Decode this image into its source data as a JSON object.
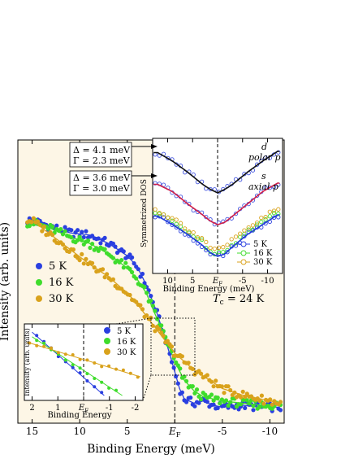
{
  "colors": {
    "panel_bg": "#fdf6e6",
    "s5K": "#2a3fe0",
    "s16K": "#3fdc2c",
    "s30K": "#d9a21c",
    "inset_open": "#4456e0",
    "fit_black": "#111111",
    "fit_red": "#d01e47",
    "fit_blue": "#1e3bd8"
  },
  "chart_data": [
    {
      "id": "main",
      "type": "scatter",
      "xlabel": "Binding Energy (meV)",
      "ylabel": "Intensity (arb. units)",
      "xlim": [
        16.5,
        -11.5
      ],
      "x_reversed": true,
      "xticks": [
        15,
        10,
        5,
        0,
        -5,
        -10
      ],
      "xtick_labels": [
        "15",
        "10",
        "5",
        "EF",
        "-5",
        "-10"
      ],
      "ylim": [
        0,
        1
      ],
      "fermi_level_line": 0,
      "legend": [
        "5 K",
        "16 K",
        "30 K"
      ],
      "legend_position": "left",
      "annotation": "Tc = 24 K",
      "series": [
        {
          "name": "5 K",
          "color_key": "s5K",
          "x": [
            15,
            13,
            11,
            9,
            7,
            5,
            4,
            3,
            2,
            1,
            0.5,
            0,
            -0.5,
            -1,
            -2,
            -3,
            -4,
            -5,
            -7,
            -9,
            -11
          ],
          "y": [
            0.93,
            0.9,
            0.87,
            0.86,
            0.82,
            0.76,
            0.71,
            0.62,
            0.5,
            0.36,
            0.28,
            0.2,
            0.12,
            0.07,
            0.05,
            0.06,
            0.04,
            0.03,
            0.04,
            0.03,
            0.03
          ]
        },
        {
          "name": "16 K",
          "color_key": "s16K",
          "x": [
            15,
            13,
            11,
            9,
            7,
            5,
            4,
            3,
            2,
            1,
            0,
            -1,
            -2,
            -3,
            -4,
            -5,
            -7,
            -9,
            -11
          ],
          "y": [
            0.92,
            0.89,
            0.85,
            0.82,
            0.77,
            0.7,
            0.65,
            0.58,
            0.47,
            0.37,
            0.25,
            0.16,
            0.11,
            0.08,
            0.07,
            0.06,
            0.05,
            0.04,
            0.04
          ]
        },
        {
          "name": "30 K",
          "color_key": "s30K",
          "x": [
            15,
            13,
            11,
            9,
            7,
            5,
            4,
            3,
            2,
            1,
            0,
            -1,
            -2,
            -3,
            -4,
            -5,
            -7,
            -9,
            -11
          ],
          "y": [
            0.93,
            0.86,
            0.79,
            0.72,
            0.66,
            0.58,
            0.53,
            0.47,
            0.41,
            0.35,
            0.29,
            0.25,
            0.21,
            0.18,
            0.15,
            0.12,
            0.09,
            0.07,
            0.05
          ]
        }
      ]
    },
    {
      "id": "inset_upper",
      "type": "scatter",
      "xlabel": "Binding Energy (meV)",
      "ylabel": "Symmetrized DOS",
      "xlim": [
        13,
        -13
      ],
      "x_reversed": true,
      "xticks": [
        10,
        5,
        0,
        -5,
        -10
      ],
      "xtick_labels": [
        "10",
        "5",
        "EF",
        "-5",
        "-10"
      ],
      "ylim": [
        0,
        1
      ],
      "legend": [
        "5 K",
        "16 K",
        "30 K"
      ],
      "legend_position": "bottom-right",
      "curves": [
        {
          "label_top": "d",
          "label_bottom": "polar p",
          "fit_color_key": "fit_black",
          "x": [
            12,
            9,
            6,
            3,
            1.5,
            0,
            -1.5,
            -3,
            -6,
            -9,
            -12
          ],
          "y": [
            0.95,
            0.88,
            0.79,
            0.69,
            0.65,
            0.62,
            0.65,
            0.69,
            0.79,
            0.88,
            0.96
          ]
        },
        {
          "label_top": "s",
          "label_bottom": "axial p",
          "fit_color_key": "fit_red",
          "x": [
            12,
            9,
            6,
            3,
            1.5,
            0,
            -1.5,
            -3,
            -6,
            -9,
            -12
          ],
          "y": [
            0.69,
            0.63,
            0.53,
            0.44,
            0.39,
            0.36,
            0.38,
            0.43,
            0.53,
            0.63,
            0.7
          ]
        },
        {
          "label_top": "",
          "label_bottom": "",
          "fit_color_key": "fit_blue",
          "x": [
            12,
            9,
            6,
            3,
            1.5,
            0,
            -1.5,
            -3,
            -6,
            -9,
            -12
          ],
          "y": [
            0.43,
            0.36,
            0.28,
            0.19,
            0.13,
            0.1,
            0.12,
            0.18,
            0.28,
            0.36,
            0.44
          ]
        }
      ],
      "annotations": [
        {
          "lines": [
            "Δ = 4.1 meV",
            "Γ = 2.3 meV"
          ]
        },
        {
          "lines": [
            "Δ = 3.6 meV",
            "Γ = 3.0 meV"
          ]
        }
      ]
    },
    {
      "id": "inset_lower",
      "type": "line",
      "xlabel": "Binding Energy",
      "ylabel": "Intensity (arb. units)",
      "xlim": [
        2.3,
        -2.3
      ],
      "x_reversed": true,
      "xticks": [
        2,
        1,
        0,
        -1,
        -2
      ],
      "xtick_labels": [
        "2",
        "1",
        "EF",
        "-1",
        "-2"
      ],
      "ylim": [
        0,
        1
      ],
      "legend": [
        "5 K",
        "16 K",
        "30 K"
      ],
      "legend_position": "top-right",
      "series": [
        {
          "name": "5 K",
          "color_key": "s5K",
          "x": [
            2,
            -0.8
          ],
          "y": [
            0.95,
            0.0
          ]
        },
        {
          "name": "16 K",
          "color_key": "s16K",
          "x": [
            2,
            -1.5
          ],
          "y": [
            0.88,
            0.0
          ]
        },
        {
          "name": "30 K",
          "color_key": "s30K",
          "x": [
            2.2,
            -2.2
          ],
          "y": [
            0.8,
            0.28
          ]
        }
      ]
    }
  ]
}
